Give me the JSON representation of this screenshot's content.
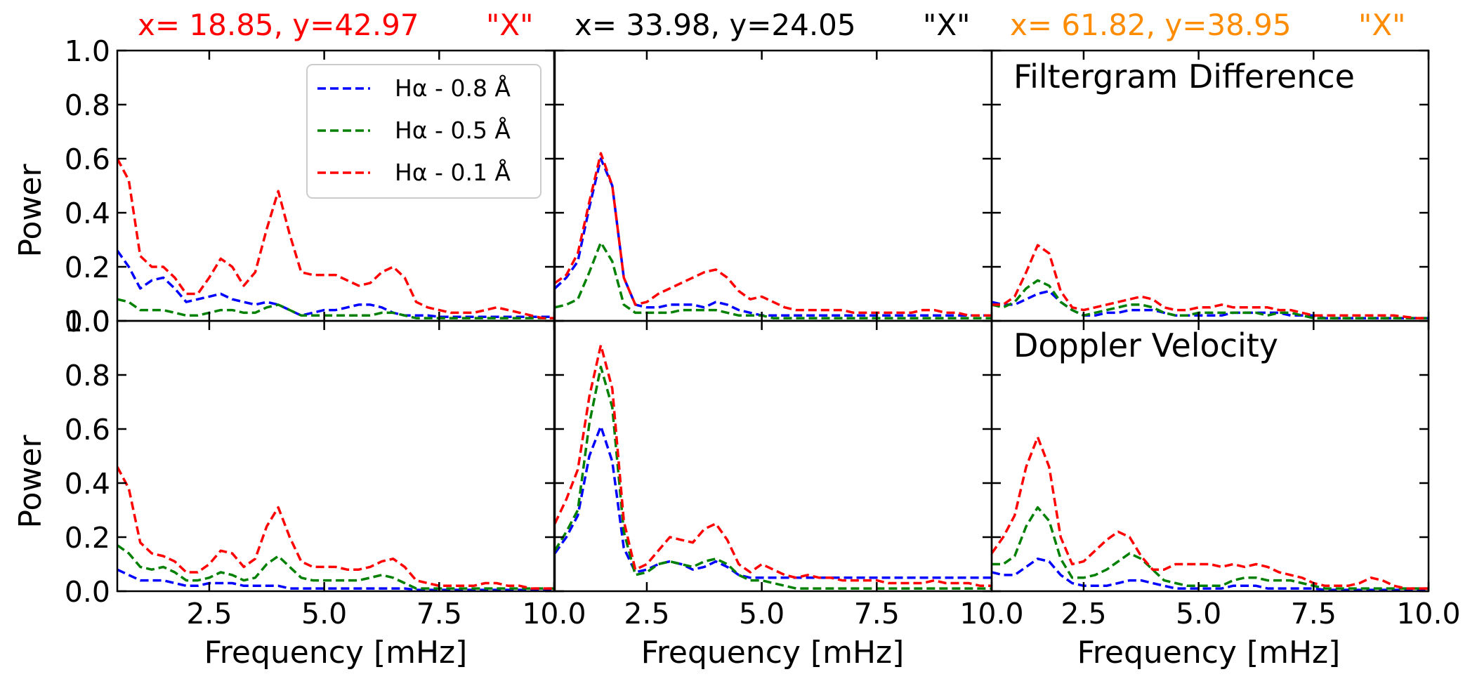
{
  "figure": {
    "column_headers": [
      {
        "coord": "x= 18.85, y=42.97",
        "marker": "\"X\"",
        "color": "#ff0000"
      },
      {
        "coord": "x= 33.98, y=24.05",
        "marker": "\"X\"",
        "color": "#000000"
      },
      {
        "coord": "x= 61.82, y=38.95",
        "marker": "\"X\"",
        "color": "#ff8c00"
      }
    ],
    "row_titles": [
      "Filtergram Difference",
      "Doppler Velocity"
    ],
    "ylabel": "Power",
    "xlabel": "Frequency [mHz]",
    "legend": [
      {
        "label": "Hα - 0.8 Å",
        "color": "#0000ff"
      },
      {
        "label": "Hα - 0.5 Å",
        "color": "#008000"
      },
      {
        "label": "Hα - 0.1 Å",
        "color": "#ff0000"
      }
    ]
  },
  "chart_data": {
    "type": "line",
    "layout": "2x3 panel grid",
    "xlabel": "Frequency [mHz]",
    "ylabel": "Power",
    "xlim": [
      0.5,
      10.0
    ],
    "ylim": [
      0.0,
      1.0
    ],
    "xticks": [
      2.5,
      5.0,
      7.5,
      10.0
    ],
    "xtick_labels": [
      "2.5",
      "5.0",
      "7.5",
      "10.0"
    ],
    "yticks": [
      0.0,
      0.2,
      0.4,
      0.6,
      0.8,
      1.0
    ],
    "ytick_labels": [
      "0.0",
      "0.2",
      "0.4",
      "0.6",
      "0.8",
      "1.0"
    ],
    "x": [
      0.5,
      0.75,
      1.0,
      1.25,
      1.5,
      1.75,
      2.0,
      2.25,
      2.5,
      2.75,
      3.0,
      3.25,
      3.5,
      3.75,
      4.0,
      4.25,
      4.5,
      4.75,
      5.0,
      5.25,
      5.5,
      5.75,
      6.0,
      6.25,
      6.5,
      6.75,
      7.0,
      7.25,
      7.5,
      7.75,
      8.0,
      8.25,
      8.5,
      8.75,
      9.0,
      9.25,
      9.5,
      9.75,
      10.0
    ],
    "panels": [
      {
        "row": 0,
        "col": 0,
        "title": "",
        "series": [
          {
            "name": "Hα - 0.8 Å",
            "values": [
              0.26,
              0.2,
              0.12,
              0.15,
              0.16,
              0.12,
              0.07,
              0.08,
              0.09,
              0.1,
              0.08,
              0.07,
              0.06,
              0.07,
              0.06,
              0.04,
              0.02,
              0.03,
              0.04,
              0.04,
              0.05,
              0.06,
              0.06,
              0.05,
              0.03,
              0.02,
              0.02,
              0.02,
              0.015,
              0.015,
              0.015,
              0.015,
              0.015,
              0.015,
              0.015,
              0.015,
              0.015,
              0.015,
              0.015
            ]
          },
          {
            "name": "Hα - 0.5 Å",
            "values": [
              0.08,
              0.07,
              0.04,
              0.04,
              0.04,
              0.03,
              0.02,
              0.02,
              0.03,
              0.04,
              0.04,
              0.03,
              0.03,
              0.05,
              0.06,
              0.04,
              0.02,
              0.02,
              0.02,
              0.02,
              0.02,
              0.02,
              0.02,
              0.03,
              0.03,
              0.02,
              0.01,
              0.01,
              0.01,
              0.01,
              0.01,
              0.01,
              0.01,
              0.01,
              0.01,
              0.01,
              0.01,
              0.01,
              0.01
            ]
          },
          {
            "name": "Hα - 0.1 Å",
            "values": [
              0.6,
              0.52,
              0.24,
              0.2,
              0.2,
              0.16,
              0.1,
              0.1,
              0.16,
              0.23,
              0.2,
              0.13,
              0.18,
              0.34,
              0.48,
              0.32,
              0.18,
              0.17,
              0.17,
              0.17,
              0.15,
              0.13,
              0.14,
              0.18,
              0.2,
              0.16,
              0.07,
              0.05,
              0.04,
              0.03,
              0.03,
              0.03,
              0.04,
              0.05,
              0.04,
              0.03,
              0.02,
              0.01,
              0.01
            ]
          }
        ]
      },
      {
        "row": 0,
        "col": 1,
        "title": "",
        "series": [
          {
            "name": "Hα - 0.8 Å",
            "values": [
              0.12,
              0.16,
              0.22,
              0.42,
              0.6,
              0.5,
              0.16,
              0.06,
              0.05,
              0.05,
              0.06,
              0.06,
              0.06,
              0.05,
              0.07,
              0.06,
              0.04,
              0.03,
              0.02,
              0.02,
              0.02,
              0.02,
              0.02,
              0.02,
              0.02,
              0.02,
              0.02,
              0.02,
              0.02,
              0.02,
              0.02,
              0.02,
              0.02,
              0.02,
              0.02,
              0.02,
              0.02,
              0.02,
              0.02
            ]
          },
          {
            "name": "Hα - 0.5 Å",
            "values": [
              0.05,
              0.06,
              0.08,
              0.18,
              0.29,
              0.22,
              0.06,
              0.03,
              0.03,
              0.03,
              0.03,
              0.04,
              0.04,
              0.04,
              0.04,
              0.03,
              0.02,
              0.02,
              0.02,
              0.01,
              0.01,
              0.01,
              0.01,
              0.01,
              0.01,
              0.01,
              0.01,
              0.01,
              0.01,
              0.01,
              0.01,
              0.01,
              0.01,
              0.01,
              0.01,
              0.01,
              0.01,
              0.01,
              0.01
            ]
          },
          {
            "name": "Hα - 0.1 Å",
            "values": [
              0.14,
              0.17,
              0.25,
              0.44,
              0.62,
              0.5,
              0.16,
              0.06,
              0.07,
              0.1,
              0.12,
              0.14,
              0.16,
              0.18,
              0.19,
              0.16,
              0.11,
              0.08,
              0.09,
              0.07,
              0.05,
              0.04,
              0.04,
              0.04,
              0.04,
              0.04,
              0.03,
              0.03,
              0.03,
              0.03,
              0.03,
              0.03,
              0.04,
              0.04,
              0.03,
              0.03,
              0.02,
              0.02,
              0.02
            ]
          }
        ]
      },
      {
        "row": 0,
        "col": 2,
        "title": "Filtergram Difference",
        "series": [
          {
            "name": "Hα - 0.8 Å",
            "values": [
              0.07,
              0.06,
              0.06,
              0.08,
              0.1,
              0.11,
              0.07,
              0.04,
              0.02,
              0.02,
              0.03,
              0.03,
              0.04,
              0.04,
              0.04,
              0.03,
              0.02,
              0.02,
              0.02,
              0.02,
              0.02,
              0.03,
              0.03,
              0.03,
              0.03,
              0.03,
              0.02,
              0.02,
              0.02,
              0.01,
              0.01,
              0.01,
              0.01,
              0.01,
              0.01,
              0.01,
              0.01,
              0.01,
              0.01
            ]
          },
          {
            "name": "Hα - 0.5 Å",
            "values": [
              0.06,
              0.05,
              0.07,
              0.12,
              0.15,
              0.13,
              0.07,
              0.04,
              0.02,
              0.03,
              0.04,
              0.05,
              0.06,
              0.06,
              0.05,
              0.03,
              0.02,
              0.02,
              0.03,
              0.03,
              0.03,
              0.03,
              0.03,
              0.03,
              0.02,
              0.03,
              0.03,
              0.02,
              0.01,
              0.01,
              0.01,
              0.01,
              0.01,
              0.01,
              0.01,
              0.01,
              0.01,
              0.01,
              0.01
            ]
          },
          {
            "name": "Hα - 0.1 Å",
            "values": [
              0.06,
              0.06,
              0.09,
              0.18,
              0.28,
              0.25,
              0.11,
              0.05,
              0.04,
              0.05,
              0.06,
              0.07,
              0.08,
              0.09,
              0.08,
              0.05,
              0.04,
              0.04,
              0.05,
              0.05,
              0.06,
              0.05,
              0.05,
              0.05,
              0.05,
              0.04,
              0.04,
              0.03,
              0.02,
              0.02,
              0.02,
              0.02,
              0.02,
              0.02,
              0.02,
              0.02,
              0.015,
              0.01,
              0.01
            ]
          }
        ]
      },
      {
        "row": 1,
        "col": 0,
        "title": "",
        "series": [
          {
            "name": "Hα - 0.8 Å",
            "values": [
              0.08,
              0.06,
              0.04,
              0.04,
              0.04,
              0.03,
              0.02,
              0.02,
              0.03,
              0.03,
              0.03,
              0.02,
              0.02,
              0.02,
              0.02,
              0.01,
              0.01,
              0.01,
              0.01,
              0.01,
              0.01,
              0.01,
              0.01,
              0.01,
              0.01,
              0.01,
              0.005,
              0.005,
              0.005,
              0.005,
              0.005,
              0.005,
              0.005,
              0.005,
              0.005,
              0.005,
              0.005,
              0.005,
              0.005
            ]
          },
          {
            "name": "Hα - 0.5 Å",
            "values": [
              0.17,
              0.14,
              0.09,
              0.08,
              0.09,
              0.07,
              0.04,
              0.04,
              0.05,
              0.07,
              0.06,
              0.04,
              0.05,
              0.1,
              0.13,
              0.09,
              0.05,
              0.04,
              0.04,
              0.04,
              0.04,
              0.04,
              0.05,
              0.06,
              0.05,
              0.03,
              0.01,
              0.01,
              0.01,
              0.01,
              0.01,
              0.01,
              0.01,
              0.01,
              0.01,
              0.01,
              0.01,
              0.01,
              0.01
            ]
          },
          {
            "name": "Hα - 0.1 Å",
            "values": [
              0.46,
              0.38,
              0.18,
              0.14,
              0.13,
              0.11,
              0.07,
              0.07,
              0.1,
              0.15,
              0.14,
              0.09,
              0.12,
              0.24,
              0.31,
              0.2,
              0.11,
              0.09,
              0.09,
              0.09,
              0.08,
              0.08,
              0.09,
              0.11,
              0.12,
              0.09,
              0.04,
              0.03,
              0.02,
              0.02,
              0.02,
              0.02,
              0.03,
              0.03,
              0.02,
              0.02,
              0.01,
              0.01,
              0.01
            ]
          }
        ]
      },
      {
        "row": 1,
        "col": 1,
        "title": "",
        "series": [
          {
            "name": "Hα - 0.8 Å",
            "values": [
              0.14,
              0.2,
              0.28,
              0.5,
              0.61,
              0.48,
              0.16,
              0.07,
              0.08,
              0.1,
              0.11,
              0.1,
              0.08,
              0.09,
              0.11,
              0.09,
              0.06,
              0.05,
              0.05,
              0.05,
              0.05,
              0.05,
              0.05,
              0.05,
              0.05,
              0.05,
              0.05,
              0.05,
              0.05,
              0.05,
              0.05,
              0.05,
              0.05,
              0.05,
              0.05,
              0.05,
              0.05,
              0.05,
              0.05
            ]
          },
          {
            "name": "Hα - 0.5 Å",
            "values": [
              0.15,
              0.22,
              0.3,
              0.62,
              0.83,
              0.68,
              0.22,
              0.06,
              0.07,
              0.1,
              0.11,
              0.1,
              0.09,
              0.11,
              0.12,
              0.1,
              0.06,
              0.04,
              0.04,
              0.03,
              0.02,
              0.01,
              0.01,
              0.01,
              0.01,
              0.01,
              0.01,
              0.01,
              0.01,
              0.01,
              0.01,
              0.01,
              0.01,
              0.01,
              0.01,
              0.01,
              0.01,
              0.01,
              0.01
            ]
          },
          {
            "name": "Hα - 0.1 Å",
            "values": [
              0.25,
              0.34,
              0.45,
              0.72,
              0.91,
              0.75,
              0.26,
              0.08,
              0.1,
              0.15,
              0.2,
              0.19,
              0.18,
              0.23,
              0.25,
              0.19,
              0.1,
              0.07,
              0.1,
              0.08,
              0.06,
              0.05,
              0.06,
              0.05,
              0.05,
              0.04,
              0.04,
              0.04,
              0.04,
              0.03,
              0.03,
              0.03,
              0.03,
              0.04,
              0.03,
              0.03,
              0.03,
              0.02,
              0.02
            ]
          }
        ]
      },
      {
        "row": 1,
        "col": 2,
        "title": "Doppler Velocity",
        "series": [
          {
            "name": "Hα - 0.8 Å",
            "values": [
              0.07,
              0.06,
              0.06,
              0.09,
              0.12,
              0.11,
              0.06,
              0.03,
              0.02,
              0.02,
              0.02,
              0.03,
              0.04,
              0.04,
              0.03,
              0.02,
              0.01,
              0.01,
              0.01,
              0.01,
              0.01,
              0.02,
              0.02,
              0.02,
              0.01,
              0.01,
              0.01,
              0.01,
              0.01,
              0.005,
              0.005,
              0.005,
              0.005,
              0.005,
              0.005,
              0.005,
              0.005,
              0.005,
              0.005
            ]
          },
          {
            "name": "Hα - 0.5 Å",
            "values": [
              0.1,
              0.1,
              0.13,
              0.24,
              0.31,
              0.26,
              0.12,
              0.05,
              0.05,
              0.06,
              0.08,
              0.11,
              0.14,
              0.12,
              0.08,
              0.04,
              0.03,
              0.02,
              0.02,
              0.02,
              0.02,
              0.04,
              0.05,
              0.05,
              0.04,
              0.04,
              0.04,
              0.03,
              0.02,
              0.01,
              0.01,
              0.01,
              0.01,
              0.01,
              0.01,
              0.01,
              0.01,
              0.01,
              0.01
            ]
          },
          {
            "name": "Hα - 0.1 Å",
            "values": [
              0.14,
              0.2,
              0.28,
              0.46,
              0.57,
              0.46,
              0.2,
              0.1,
              0.11,
              0.15,
              0.19,
              0.22,
              0.2,
              0.13,
              0.08,
              0.08,
              0.1,
              0.1,
              0.1,
              0.1,
              0.09,
              0.1,
              0.09,
              0.1,
              0.09,
              0.07,
              0.06,
              0.05,
              0.03,
              0.02,
              0.02,
              0.02,
              0.03,
              0.05,
              0.04,
              0.02,
              0.01,
              0.01,
              0.01
            ]
          }
        ]
      }
    ]
  }
}
